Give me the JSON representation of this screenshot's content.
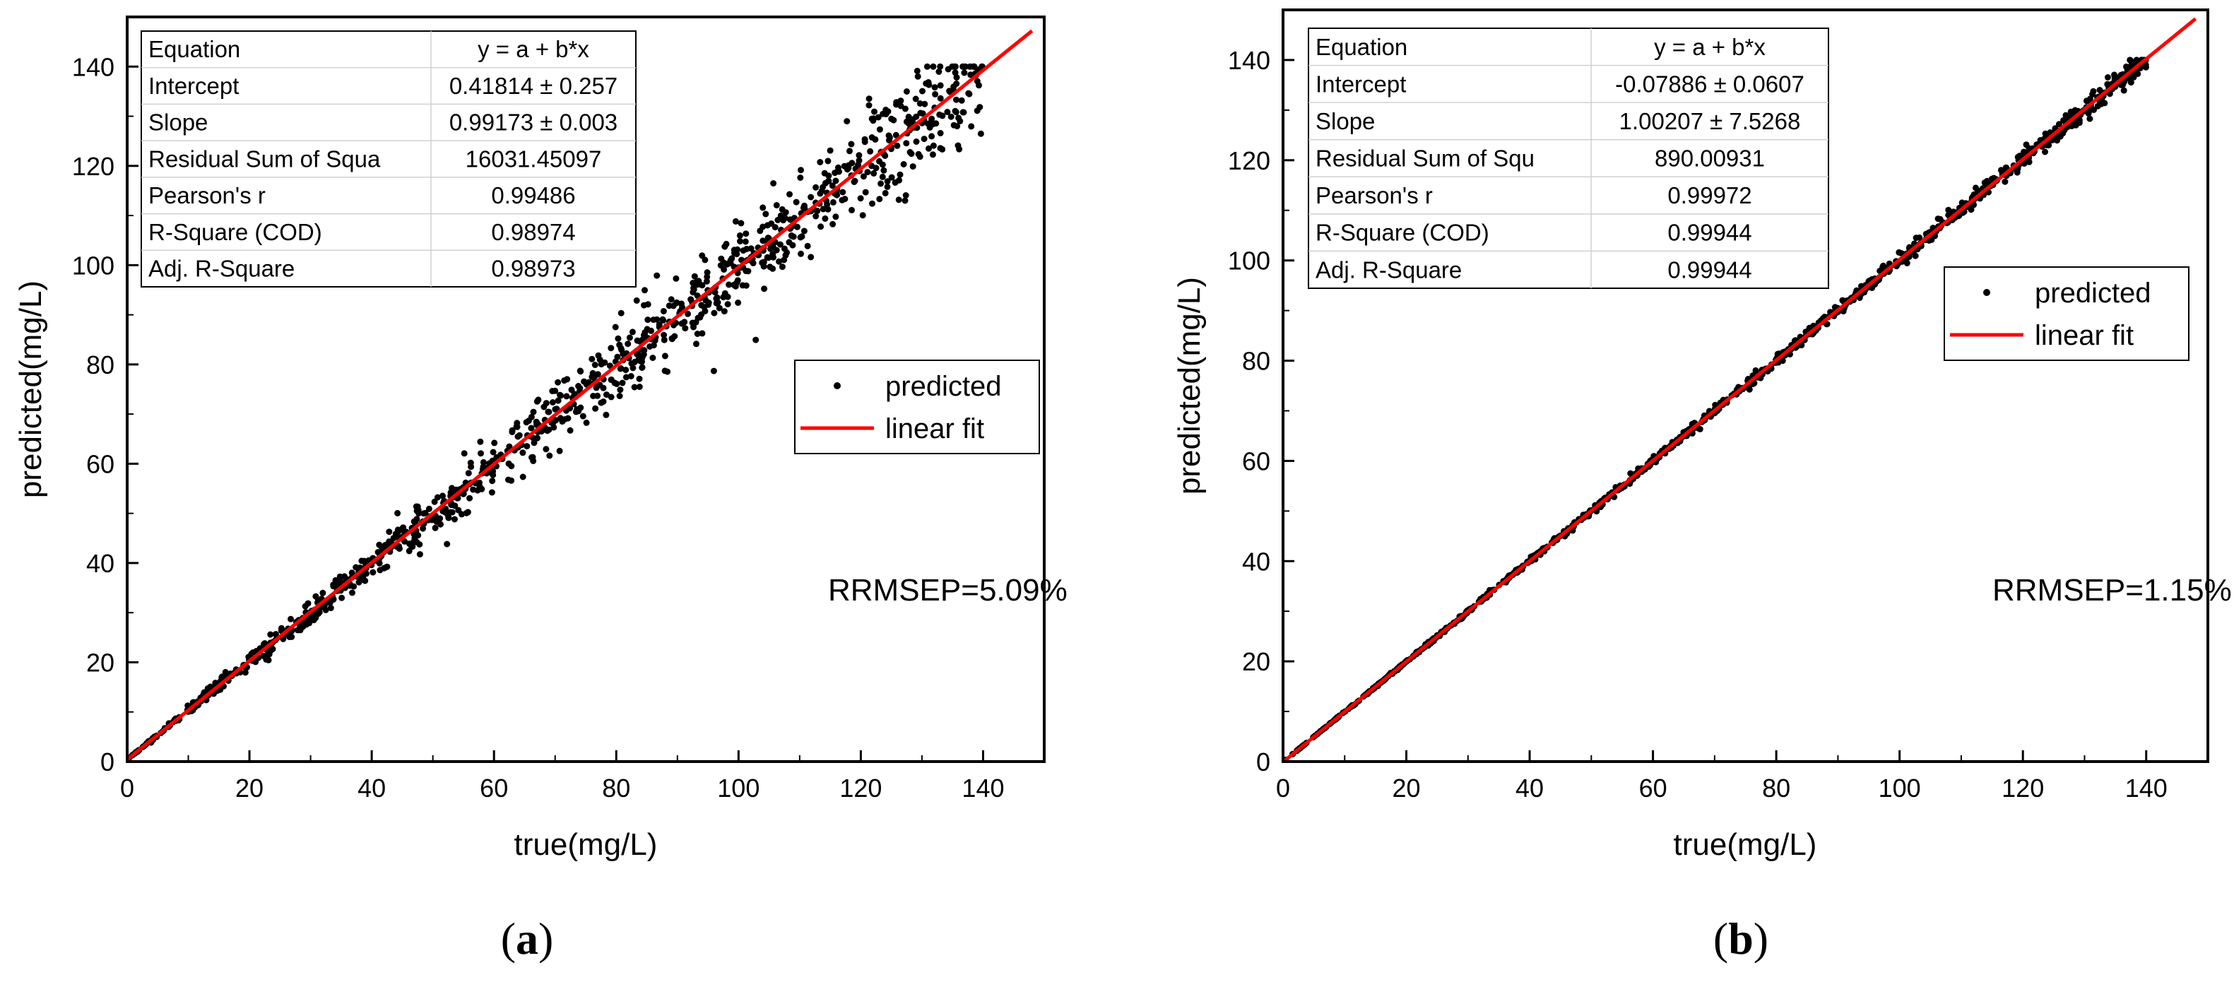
{
  "chart_data": [
    {
      "type": "scatter",
      "caption_letter": "a",
      "xlabel": "true(mg/L)",
      "ylabel": "predicted(mg/L)",
      "xlim": [
        0,
        150
      ],
      "ylim": [
        0,
        150
      ],
      "xticks": [
        0,
        20,
        40,
        60,
        80,
        100,
        120,
        140
      ],
      "yticks": [
        0,
        20,
        40,
        60,
        80,
        100,
        120,
        140
      ],
      "series": [
        {
          "name": "predicted",
          "kind": "scatter",
          "color": "#000000",
          "x_range": [
            0,
            140
          ],
          "y_equals_x_noise_fraction": 0.06,
          "count": 1100
        },
        {
          "name": "linear fit",
          "kind": "line",
          "color": "#ff0000",
          "intercept": 0.41814,
          "slope": 0.99173,
          "x_range": [
            0,
            148
          ]
        }
      ],
      "legend_position": "middle-right",
      "fit_table": [
        {
          "label": "Equation",
          "value": "y = a + b*x"
        },
        {
          "label": "Intercept",
          "value": "0.41814 ± 0.257"
        },
        {
          "label": "Slope",
          "value": "0.99173 ± 0.003"
        },
        {
          "label": "Residual Sum of Squa",
          "value": "16031.45097"
        },
        {
          "label": "Pearson's r",
          "value": "0.99486"
        },
        {
          "label": "R-Square (COD)",
          "value": "0.98974"
        },
        {
          "label": "Adj. R-Square",
          "value": "0.98973"
        }
      ],
      "annotation": "RRMSEP=5.09%"
    },
    {
      "type": "scatter",
      "caption_letter": "b",
      "xlabel": "true(mg/L)",
      "ylabel": "predicted(mg/L)",
      "xlim": [
        0,
        150
      ],
      "ylim": [
        0,
        150
      ],
      "xticks": [
        0,
        20,
        40,
        60,
        80,
        100,
        120,
        140
      ],
      "yticks": [
        0,
        20,
        40,
        60,
        80,
        100,
        120,
        140
      ],
      "series": [
        {
          "name": "predicted",
          "kind": "scatter",
          "color": "#000000",
          "x_range": [
            0,
            140
          ],
          "y_equals_x_noise_fraction": 0.01,
          "count": 1100
        },
        {
          "name": "linear fit",
          "kind": "line",
          "color": "#ff0000",
          "intercept": -0.07886,
          "slope": 1.00207,
          "x_range": [
            0,
            148
          ]
        }
      ],
      "legend_position": "upper-right",
      "fit_table": [
        {
          "label": "Equation",
          "value": "y = a + b*x"
        },
        {
          "label": "Intercept",
          "value": "-0.07886 ± 0.0607"
        },
        {
          "label": "Slope",
          "value": "1.00207 ± 7.5268"
        },
        {
          "label": "Residual Sum of Squ",
          "value": "890.00931"
        },
        {
          "label": "Pearson's r",
          "value": "0.99972"
        },
        {
          "label": "R-Square (COD)",
          "value": "0.99944"
        },
        {
          "label": "Adj. R-Square",
          "value": "0.99944"
        }
      ],
      "annotation": "RRMSEP=1.15%"
    }
  ]
}
